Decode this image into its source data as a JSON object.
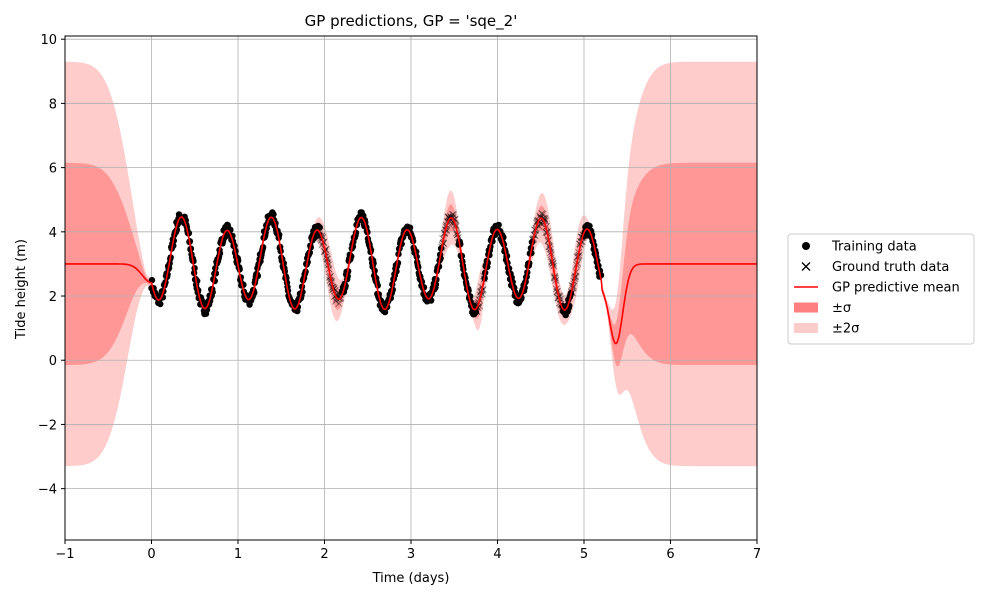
{
  "chart_data": {
    "type": "line",
    "title": "GP predictions, GP = 'sqe_2'",
    "xlabel": "Time (days)",
    "ylabel": "Tide height (m)",
    "xlim": [
      -1,
      7
    ],
    "ylim": [
      -5.6,
      10.1
    ],
    "x_ticks": [
      -1,
      0,
      1,
      2,
      3,
      4,
      5,
      6,
      7
    ],
    "y_ticks": [
      -4,
      -2,
      0,
      2,
      4,
      6,
      8,
      10
    ],
    "grid": true,
    "legend_position": "right",
    "colors": {
      "mean": "#ff0000",
      "band1": "#ff8080",
      "band2": "#ffcccc",
      "training": "#000000",
      "ground_truth": "#404040"
    },
    "legend": [
      {
        "label": "Training data",
        "marker": "dot"
      },
      {
        "label": "Ground truth data",
        "marker": "x"
      },
      {
        "label": "GP predictive mean",
        "marker": "line"
      },
      {
        "label": "±σ",
        "marker": "patch-dark"
      },
      {
        "label": "±2σ",
        "marker": "patch-light"
      }
    ],
    "gp_prior_mean": 3.0,
    "gp_prior_sigma": 3.15,
    "tide_baseline": 3.0,
    "tide_amplitude": 1.25,
    "tide_period_days": 0.52,
    "tide_phase_peak_day": 0.35,
    "training_range": [
      0.0,
      5.2
    ],
    "gap_intervals": [
      [
        1.95,
        2.2
      ],
      [
        3.35,
        3.55
      ],
      [
        3.75,
        3.85
      ],
      [
        4.4,
        4.75
      ],
      [
        4.85,
        5.0
      ]
    ],
    "post_data_dip": {
      "center_day": 5.35,
      "mean_value": -0.1
    },
    "series": [
      {
        "name": "Training data"
      },
      {
        "name": "Ground truth data"
      },
      {
        "name": "GP predictive mean"
      }
    ]
  }
}
